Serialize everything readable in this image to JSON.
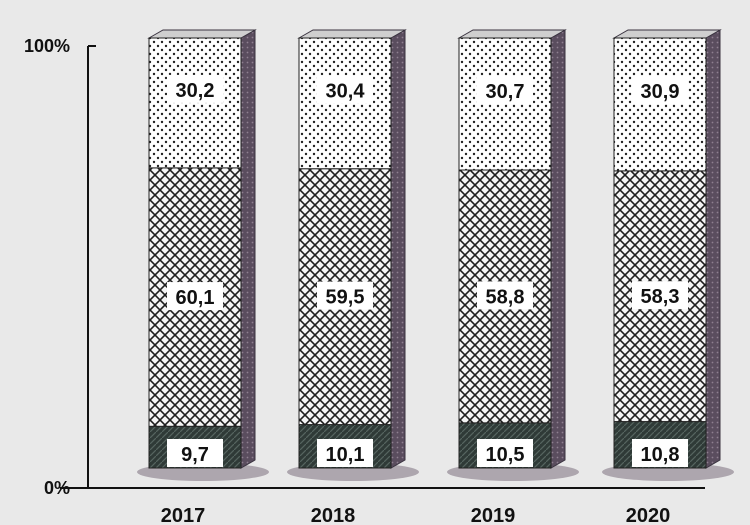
{
  "chart_data": {
    "type": "bar",
    "stacked": true,
    "percent": true,
    "categories": [
      "2017",
      "2018",
      "2019",
      "2020"
    ],
    "series": [
      {
        "values": [
          9.7,
          10.1,
          10.5,
          10.8
        ],
        "labels": [
          "9,7",
          "10,1",
          "10,5",
          "10,8"
        ],
        "pattern": "dark"
      },
      {
        "values": [
          60.1,
          59.5,
          58.8,
          58.3
        ],
        "labels": [
          "60,1",
          "59,5",
          "58,8",
          "58,3"
        ],
        "pattern": "crosshatch"
      },
      {
        "values": [
          30.2,
          30.4,
          30.7,
          30.9
        ],
        "labels": [
          "30,2",
          "30,4",
          "30,7",
          "30,9"
        ],
        "pattern": "dots"
      }
    ],
    "ylim": [
      0,
      100
    ],
    "yticks": [
      "0%",
      "100%"
    ],
    "grid": false,
    "legend": "none"
  },
  "colors": {
    "background": "#e9e9e9",
    "bar_side": "#5a4d5e",
    "base_fill": "#2f3a37",
    "hatch": "#1d1d1d"
  }
}
